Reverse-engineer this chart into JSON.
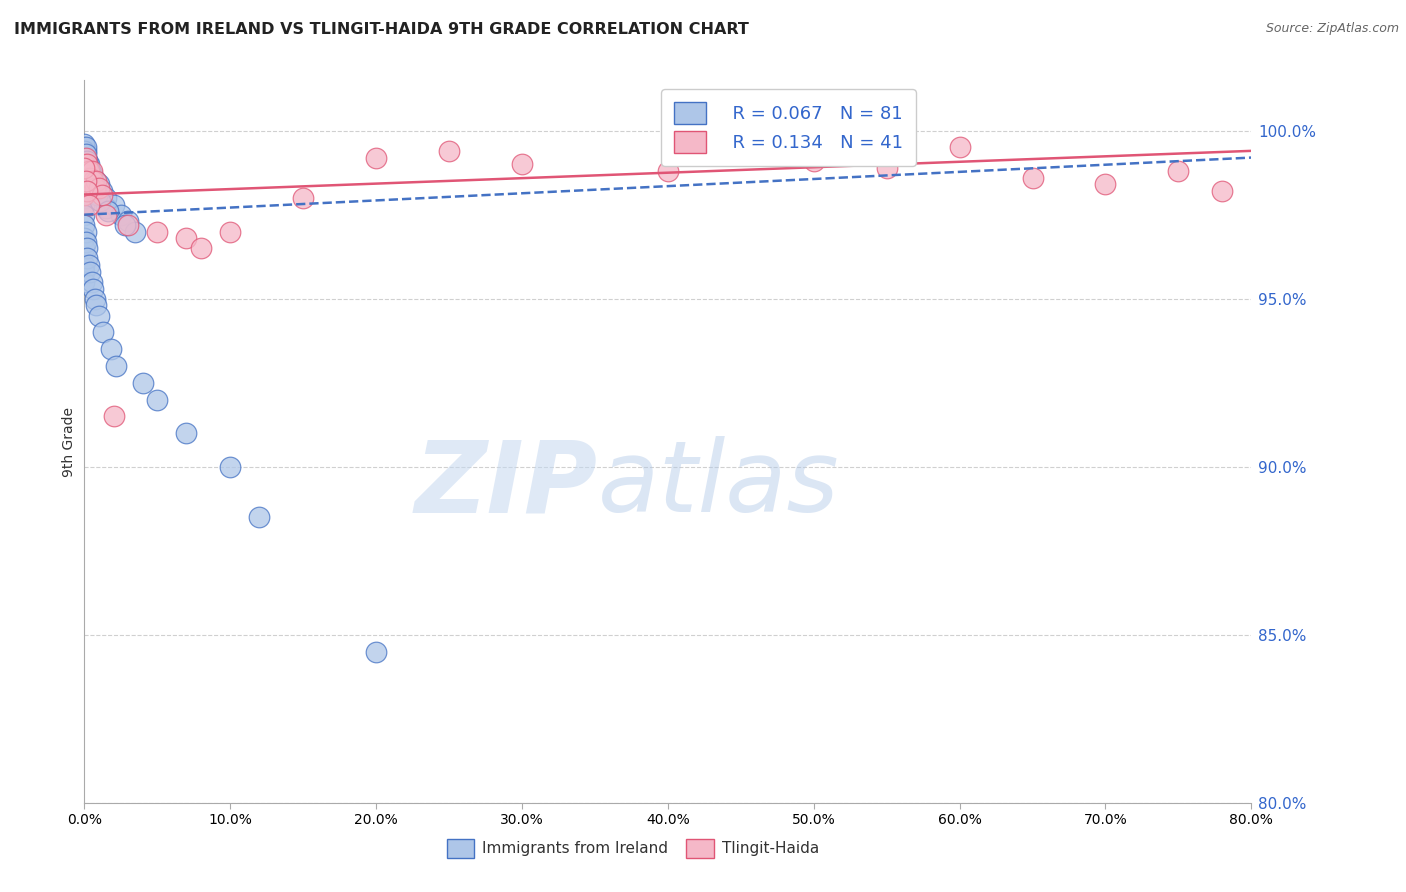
{
  "title": "IMMIGRANTS FROM IRELAND VS TLINGIT-HAIDA 9TH GRADE CORRELATION CHART",
  "source": "Source: ZipAtlas.com",
  "ylabel": "9th Grade",
  "xlim": [
    0.0,
    80.0
  ],
  "ylim": [
    80.0,
    101.5
  ],
  "yticks": [
    80.0,
    85.0,
    90.0,
    95.0,
    100.0
  ],
  "xticks": [
    0.0,
    10.0,
    20.0,
    30.0,
    40.0,
    50.0,
    60.0,
    70.0,
    80.0
  ],
  "legend_r1": "R = 0.067",
  "legend_n1": "N = 81",
  "legend_r2": "R = 0.134",
  "legend_n2": "N = 41",
  "blue_color": "#aec6e8",
  "pink_color": "#f5b8c8",
  "trend_blue": "#4472c4",
  "trend_pink": "#e05575",
  "legend_text_color": "#3366cc",
  "blue_scatter_x": [
    0.0,
    0.0,
    0.0,
    0.0,
    0.0,
    0.0,
    0.0,
    0.0,
    0.0,
    0.0,
    0.1,
    0.1,
    0.1,
    0.1,
    0.1,
    0.2,
    0.2,
    0.2,
    0.2,
    0.3,
    0.3,
    0.3,
    0.4,
    0.4,
    0.5,
    0.5,
    0.6,
    0.7,
    0.8,
    0.9,
    1.0,
    1.0,
    1.2,
    1.5,
    1.5,
    2.0,
    2.5,
    3.0,
    3.5,
    0.0,
    0.0,
    0.0,
    0.0,
    0.0,
    0.0,
    0.0,
    0.1,
    0.1,
    0.2,
    0.2,
    0.3,
    0.4,
    0.5,
    0.6,
    0.7,
    0.8,
    1.0,
    1.3,
    1.8,
    2.2,
    4.0,
    5.0,
    7.0,
    10.0,
    12.0,
    0.0,
    0.0,
    0.0,
    0.0,
    0.1,
    0.1,
    0.2,
    0.3,
    0.4,
    0.5,
    0.7,
    0.9,
    1.1,
    1.6,
    2.8,
    20.0
  ],
  "blue_scatter_y": [
    99.5,
    99.3,
    99.1,
    99.0,
    98.8,
    98.6,
    98.4,
    98.2,
    98.0,
    97.8,
    99.4,
    99.2,
    99.0,
    98.7,
    98.5,
    99.1,
    98.9,
    98.6,
    98.3,
    99.0,
    98.7,
    98.4,
    98.8,
    98.5,
    98.7,
    98.3,
    98.6,
    98.4,
    98.5,
    98.3,
    98.4,
    98.1,
    98.2,
    98.0,
    97.7,
    97.8,
    97.5,
    97.3,
    97.0,
    97.5,
    97.2,
    96.8,
    96.5,
    96.0,
    95.8,
    95.5,
    97.0,
    96.7,
    96.5,
    96.2,
    96.0,
    95.8,
    95.5,
    95.3,
    95.0,
    94.8,
    94.5,
    94.0,
    93.5,
    93.0,
    92.5,
    92.0,
    91.0,
    90.0,
    88.5,
    99.6,
    99.4,
    99.2,
    99.0,
    99.5,
    99.3,
    99.1,
    98.9,
    98.7,
    98.5,
    98.3,
    98.1,
    97.9,
    97.6,
    97.2,
    84.5
  ],
  "pink_scatter_x": [
    0.0,
    0.0,
    0.0,
    0.0,
    0.1,
    0.1,
    0.2,
    0.2,
    0.3,
    0.3,
    0.4,
    0.5,
    0.6,
    0.7,
    0.8,
    1.0,
    1.2,
    1.5,
    2.0,
    3.0,
    5.0,
    7.0,
    8.0,
    10.0,
    15.0,
    20.0,
    25.0,
    30.0,
    40.0,
    45.0,
    50.0,
    55.0,
    60.0,
    65.0,
    70.0,
    75.0,
    78.0,
    0.0,
    0.1,
    0.2,
    0.3
  ],
  "pink_scatter_y": [
    99.0,
    98.7,
    98.4,
    98.1,
    99.2,
    98.8,
    99.0,
    98.6,
    98.8,
    98.4,
    98.6,
    98.8,
    98.5,
    98.3,
    98.5,
    98.3,
    98.1,
    97.5,
    91.5,
    97.2,
    97.0,
    96.8,
    96.5,
    97.0,
    98.0,
    99.2,
    99.4,
    99.0,
    98.8,
    99.3,
    99.1,
    98.9,
    99.5,
    98.6,
    98.4,
    98.8,
    98.2,
    98.9,
    98.5,
    98.2,
    97.8
  ],
  "blue_trend_x": [
    0.0,
    80.0
  ],
  "blue_trend_y": [
    97.5,
    99.2
  ],
  "pink_trend_x": [
    0.0,
    80.0
  ],
  "pink_trend_y": [
    98.1,
    99.4
  ],
  "watermark_zip": "ZIP",
  "watermark_atlas": "atlas",
  "background_color": "#ffffff",
  "grid_color": "#d0d0d0"
}
